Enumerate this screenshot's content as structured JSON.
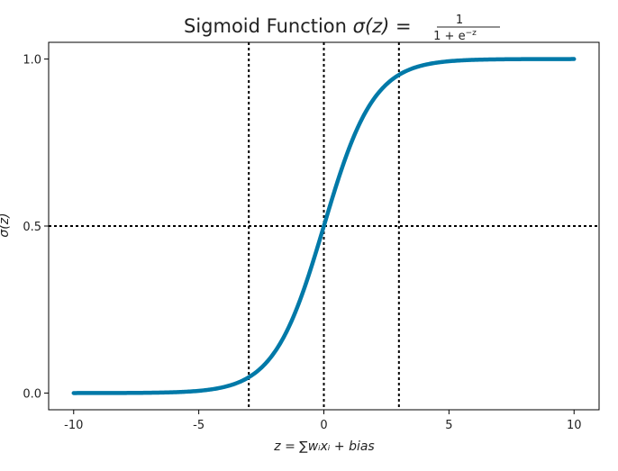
{
  "chart_data": {
    "type": "line",
    "title": "Sigmoid Function",
    "title_formula": "σ(z) =",
    "title_numerator": "1",
    "title_denominator": "1 + e",
    "title_denominator_exp": "−z",
    "xlabel": "z = ∑wᵢxᵢ + bias",
    "ylabel": "σ(z)",
    "xlim": [
      -11,
      11
    ],
    "ylim": [
      -0.05,
      1.05
    ],
    "xticks": [
      -10,
      -5,
      0,
      5,
      10
    ],
    "xtick_labels": [
      "-10",
      "-5",
      "0",
      "5",
      "10"
    ],
    "yticks": [
      0.0,
      0.5,
      1.0
    ],
    "ytick_labels": [
      "0.0",
      "0.5",
      "1.0"
    ],
    "grid": false,
    "series": [
      {
        "function": "1/(1+exp(-z))",
        "x_range": [
          -10,
          10
        ],
        "color": "#0079a8"
      }
    ],
    "reference_lines": {
      "vertical": [
        -3,
        0,
        3
      ],
      "horizontal": [
        0.5
      ],
      "style": "dotted",
      "color": "#000000"
    }
  }
}
